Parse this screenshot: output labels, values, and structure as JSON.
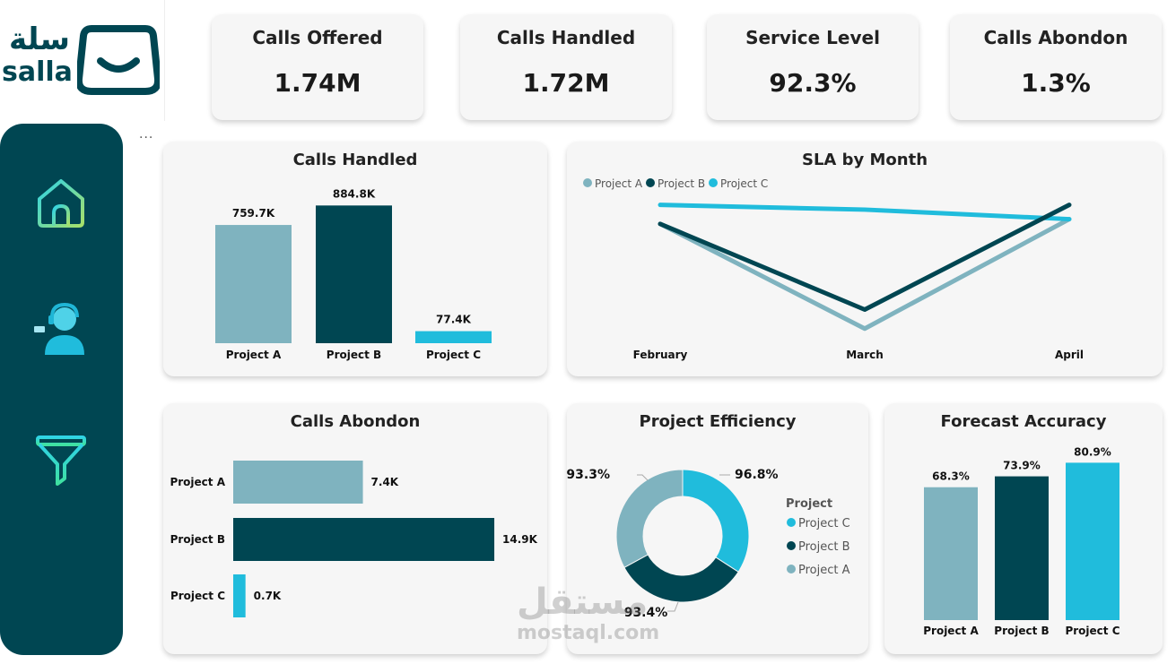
{
  "brand": {
    "arabic": "سلة",
    "latin": "salla"
  },
  "nav": {
    "more": "..."
  },
  "kpis": [
    {
      "title": "Calls Offered",
      "value": "1.74M"
    },
    {
      "title": "Calls Handled",
      "value": "1.72M"
    },
    {
      "title": "Service Level",
      "value": "92.3%"
    },
    {
      "title": "Calls Abondon",
      "value": "1.3%"
    }
  ],
  "colors": {
    "project_a": "#7fb3bf",
    "project_b": "#004652",
    "project_c": "#20bcdc",
    "sidebar": "#004652"
  },
  "icons": [
    "home-icon",
    "agent-headset-icon",
    "filter-funnel-icon"
  ],
  "chart_data": [
    {
      "type": "bar",
      "title": "Calls Handled",
      "categories": [
        "Project A",
        "Project B",
        "Project C"
      ],
      "values": [
        759.7,
        884.8,
        77.4
      ],
      "data_labels": [
        "759.7K",
        "884.8K",
        "77.4K"
      ],
      "ylim": [
        0,
        950
      ],
      "grid": false
    },
    {
      "type": "line",
      "title": "SLA by Month",
      "x": [
        "February",
        "March",
        "April"
      ],
      "series": [
        {
          "name": "Project A",
          "values": [
            0.93,
            0.82,
            0.935
          ]
        },
        {
          "name": "Project B",
          "values": [
            0.93,
            0.84,
            0.95
          ]
        },
        {
          "name": "Project C",
          "values": [
            0.95,
            0.945,
            0.935
          ]
        }
      ],
      "ylim": [
        0.8,
        0.96
      ],
      "legend": "top-left",
      "grid": false
    },
    {
      "type": "bar",
      "orientation": "horizontal",
      "title": "Calls Abondon",
      "categories": [
        "Project A",
        "Project B",
        "Project C"
      ],
      "values": [
        7.4,
        14.9,
        0.7
      ],
      "data_labels": [
        "7.4K",
        "14.9K",
        "0.7K"
      ],
      "xlim": [
        0,
        15
      ],
      "grid": false
    },
    {
      "type": "pie",
      "style": "donut",
      "title": "Project Efficiency",
      "legend_title": "Project",
      "slices": [
        {
          "name": "Project C",
          "value": 96.8,
          "label": "96.8%"
        },
        {
          "name": "Project B",
          "value": 93.4,
          "label": "93.4%"
        },
        {
          "name": "Project A",
          "value": 93.3,
          "label": "93.3%"
        }
      ],
      "legend": "right"
    },
    {
      "type": "bar",
      "title": "Forecast Accuracy",
      "categories": [
        "Project A",
        "Project B",
        "Project C"
      ],
      "values": [
        68.3,
        73.9,
        80.9
      ],
      "data_labels": [
        "68.3%",
        "73.9%",
        "80.9%"
      ],
      "ylim": [
        0,
        82
      ],
      "grid": false
    }
  ],
  "watermark": {
    "arabic": "مستقل",
    "latin": "mostaql.com"
  }
}
